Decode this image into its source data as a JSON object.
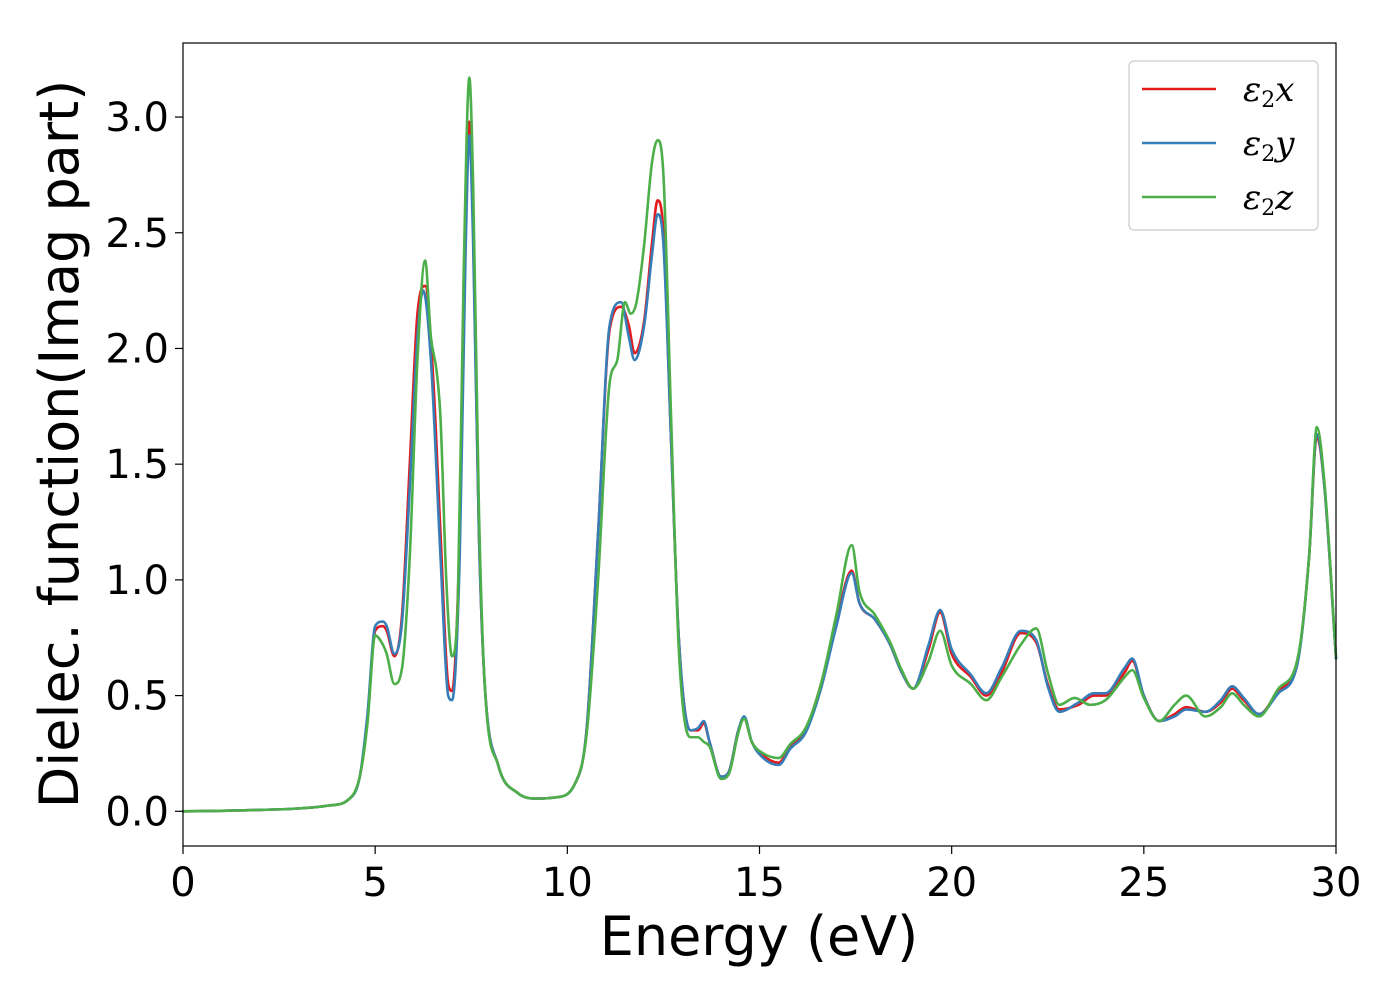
{
  "chart_data": {
    "type": "line",
    "xlabel": "Energy (eV)",
    "ylabel": "Dielec. function(Imag part)",
    "xlim": [
      0,
      30
    ],
    "ylim": [
      -0.15,
      3.32
    ],
    "xticks": [
      0,
      5,
      10,
      15,
      20,
      25,
      30
    ],
    "yticks": [
      0.0,
      0.5,
      1.0,
      1.5,
      2.0,
      2.5,
      3.0
    ],
    "xtick_labels": [
      "0",
      "5",
      "10",
      "15",
      "20",
      "25",
      "30"
    ],
    "ytick_labels": [
      "0.0",
      "0.5",
      "1.0",
      "1.5",
      "2.0",
      "2.5",
      "3.0"
    ],
    "grid": false,
    "legend_position": "top-right",
    "series": [
      {
        "name": "ε2x",
        "symbol": "ε",
        "sub": "2",
        "axis": "x",
        "color": "#e41a1c",
        "points": [
          [
            0,
            0.0
          ],
          [
            1,
            0.002
          ],
          [
            2,
            0.006
          ],
          [
            3,
            0.012
          ],
          [
            3.8,
            0.025
          ],
          [
            4.3,
            0.05
          ],
          [
            4.6,
            0.15
          ],
          [
            4.8,
            0.4
          ],
          [
            5.0,
            0.78
          ],
          [
            5.2,
            0.8
          ],
          [
            5.3,
            0.78
          ],
          [
            5.5,
            0.67
          ],
          [
            5.7,
            0.85
          ],
          [
            5.9,
            1.5
          ],
          [
            6.1,
            2.15
          ],
          [
            6.3,
            2.27
          ],
          [
            6.5,
            1.9
          ],
          [
            6.7,
            1.2
          ],
          [
            6.9,
            0.55
          ],
          [
            7.0,
            0.52
          ],
          [
            7.2,
            1.2
          ],
          [
            7.35,
            2.5
          ],
          [
            7.45,
            2.98
          ],
          [
            7.55,
            2.5
          ],
          [
            7.7,
            1.2
          ],
          [
            7.85,
            0.55
          ],
          [
            8.2,
            0.2
          ],
          [
            8.7,
            0.08
          ],
          [
            9.2,
            0.055
          ],
          [
            9.7,
            0.06
          ],
          [
            10.2,
            0.12
          ],
          [
            10.5,
            0.35
          ],
          [
            10.8,
            1.2
          ],
          [
            11.1,
            2.08
          ],
          [
            11.4,
            2.18
          ],
          [
            11.6,
            2.1
          ],
          [
            11.75,
            1.98
          ],
          [
            12.0,
            2.12
          ],
          [
            12.2,
            2.45
          ],
          [
            12.35,
            2.64
          ],
          [
            12.5,
            2.5
          ],
          [
            12.7,
            1.6
          ],
          [
            12.9,
            0.75
          ],
          [
            13.2,
            0.35
          ],
          [
            13.4,
            0.35
          ],
          [
            13.55,
            0.38
          ],
          [
            13.7,
            0.3
          ],
          [
            14.0,
            0.15
          ],
          [
            14.2,
            0.17
          ],
          [
            14.45,
            0.35
          ],
          [
            14.6,
            0.4
          ],
          [
            14.8,
            0.3
          ],
          [
            15.1,
            0.24
          ],
          [
            15.5,
            0.21
          ],
          [
            15.8,
            0.28
          ],
          [
            16.2,
            0.35
          ],
          [
            16.6,
            0.55
          ],
          [
            17.0,
            0.82
          ],
          [
            17.4,
            1.04
          ],
          [
            17.6,
            0.9
          ],
          [
            18.0,
            0.83
          ],
          [
            18.4,
            0.72
          ],
          [
            18.7,
            0.6
          ],
          [
            19.0,
            0.53
          ],
          [
            19.4,
            0.7
          ],
          [
            19.7,
            0.86
          ],
          [
            20.0,
            0.68
          ],
          [
            20.5,
            0.58
          ],
          [
            20.9,
            0.5
          ],
          [
            21.3,
            0.6
          ],
          [
            21.8,
            0.77
          ],
          [
            22.2,
            0.73
          ],
          [
            22.5,
            0.55
          ],
          [
            22.8,
            0.44
          ],
          [
            23.3,
            0.46
          ],
          [
            23.7,
            0.5
          ],
          [
            24.0,
            0.5
          ],
          [
            24.5,
            0.6
          ],
          [
            24.7,
            0.65
          ],
          [
            25.0,
            0.5
          ],
          [
            25.4,
            0.39
          ],
          [
            25.8,
            0.42
          ],
          [
            26.1,
            0.45
          ],
          [
            26.6,
            0.43
          ],
          [
            27.0,
            0.47
          ],
          [
            27.3,
            0.53
          ],
          [
            27.6,
            0.48
          ],
          [
            28.0,
            0.42
          ],
          [
            28.5,
            0.52
          ],
          [
            29.0,
            0.65
          ],
          [
            29.3,
            1.1
          ],
          [
            29.5,
            1.62
          ],
          [
            29.7,
            1.4
          ],
          [
            30.0,
            0.66
          ]
        ]
      },
      {
        "name": "ε2y",
        "symbol": "ε",
        "sub": "2",
        "axis": "y",
        "color": "#377eb8",
        "points": [
          [
            0,
            0.0
          ],
          [
            1,
            0.002
          ],
          [
            2,
            0.006
          ],
          [
            3,
            0.012
          ],
          [
            3.8,
            0.025
          ],
          [
            4.3,
            0.05
          ],
          [
            4.6,
            0.15
          ],
          [
            4.8,
            0.42
          ],
          [
            5.0,
            0.8
          ],
          [
            5.2,
            0.82
          ],
          [
            5.3,
            0.8
          ],
          [
            5.5,
            0.68
          ],
          [
            5.7,
            0.82
          ],
          [
            5.9,
            1.4
          ],
          [
            6.1,
            2.05
          ],
          [
            6.25,
            2.25
          ],
          [
            6.45,
            1.95
          ],
          [
            6.7,
            1.1
          ],
          [
            6.9,
            0.5
          ],
          [
            7.0,
            0.48
          ],
          [
            7.2,
            1.1
          ],
          [
            7.35,
            2.4
          ],
          [
            7.45,
            2.92
          ],
          [
            7.55,
            2.45
          ],
          [
            7.7,
            1.2
          ],
          [
            7.85,
            0.55
          ],
          [
            8.2,
            0.2
          ],
          [
            8.7,
            0.08
          ],
          [
            9.2,
            0.055
          ],
          [
            9.7,
            0.06
          ],
          [
            10.2,
            0.12
          ],
          [
            10.5,
            0.35
          ],
          [
            10.8,
            1.2
          ],
          [
            11.1,
            2.1
          ],
          [
            11.4,
            2.2
          ],
          [
            11.6,
            2.05
          ],
          [
            11.75,
            1.95
          ],
          [
            12.0,
            2.1
          ],
          [
            12.2,
            2.4
          ],
          [
            12.35,
            2.58
          ],
          [
            12.5,
            2.45
          ],
          [
            12.7,
            1.6
          ],
          [
            12.9,
            0.75
          ],
          [
            13.2,
            0.35
          ],
          [
            13.4,
            0.36
          ],
          [
            13.55,
            0.39
          ],
          [
            13.7,
            0.3
          ],
          [
            14.0,
            0.15
          ],
          [
            14.2,
            0.17
          ],
          [
            14.45,
            0.35
          ],
          [
            14.6,
            0.41
          ],
          [
            14.8,
            0.3
          ],
          [
            15.1,
            0.23
          ],
          [
            15.5,
            0.2
          ],
          [
            15.8,
            0.27
          ],
          [
            16.2,
            0.34
          ],
          [
            16.6,
            0.53
          ],
          [
            17.0,
            0.8
          ],
          [
            17.4,
            1.03
          ],
          [
            17.6,
            0.9
          ],
          [
            18.0,
            0.83
          ],
          [
            18.4,
            0.72
          ],
          [
            18.7,
            0.6
          ],
          [
            19.0,
            0.53
          ],
          [
            19.4,
            0.72
          ],
          [
            19.7,
            0.87
          ],
          [
            20.0,
            0.7
          ],
          [
            20.5,
            0.59
          ],
          [
            20.9,
            0.51
          ],
          [
            21.3,
            0.62
          ],
          [
            21.8,
            0.78
          ],
          [
            22.2,
            0.74
          ],
          [
            22.5,
            0.54
          ],
          [
            22.8,
            0.43
          ],
          [
            23.3,
            0.47
          ],
          [
            23.7,
            0.51
          ],
          [
            24.0,
            0.51
          ],
          [
            24.5,
            0.62
          ],
          [
            24.7,
            0.66
          ],
          [
            25.0,
            0.5
          ],
          [
            25.4,
            0.39
          ],
          [
            25.8,
            0.41
          ],
          [
            26.1,
            0.44
          ],
          [
            26.6,
            0.43
          ],
          [
            27.0,
            0.48
          ],
          [
            27.3,
            0.54
          ],
          [
            27.6,
            0.49
          ],
          [
            28.0,
            0.42
          ],
          [
            28.5,
            0.51
          ],
          [
            29.0,
            0.64
          ],
          [
            29.3,
            1.1
          ],
          [
            29.5,
            1.63
          ],
          [
            29.7,
            1.4
          ],
          [
            30.0,
            0.66
          ]
        ]
      },
      {
        "name": "ε2z",
        "symbol": "ε",
        "sub": "2",
        "axis": "z",
        "color": "#4daf4a",
        "points": [
          [
            0,
            0.0
          ],
          [
            1,
            0.002
          ],
          [
            2,
            0.006
          ],
          [
            3,
            0.012
          ],
          [
            3.8,
            0.025
          ],
          [
            4.3,
            0.05
          ],
          [
            4.6,
            0.15
          ],
          [
            4.8,
            0.38
          ],
          [
            5.0,
            0.76
          ],
          [
            5.2,
            0.72
          ],
          [
            5.3,
            0.68
          ],
          [
            5.5,
            0.55
          ],
          [
            5.7,
            0.62
          ],
          [
            5.9,
            1.1
          ],
          [
            6.1,
            1.95
          ],
          [
            6.3,
            2.38
          ],
          [
            6.45,
            2.05
          ],
          [
            6.6,
            1.9
          ],
          [
            6.7,
            1.7
          ],
          [
            6.85,
            1.0
          ],
          [
            7.0,
            0.67
          ],
          [
            7.15,
            0.9
          ],
          [
            7.3,
            2.3
          ],
          [
            7.45,
            3.17
          ],
          [
            7.55,
            2.7
          ],
          [
            7.7,
            1.3
          ],
          [
            7.85,
            0.55
          ],
          [
            8.2,
            0.2
          ],
          [
            8.7,
            0.08
          ],
          [
            9.2,
            0.055
          ],
          [
            9.7,
            0.06
          ],
          [
            10.2,
            0.12
          ],
          [
            10.5,
            0.33
          ],
          [
            10.8,
            1.0
          ],
          [
            11.1,
            1.85
          ],
          [
            11.3,
            1.95
          ],
          [
            11.5,
            2.2
          ],
          [
            11.65,
            2.15
          ],
          [
            11.8,
            2.2
          ],
          [
            12.0,
            2.45
          ],
          [
            12.2,
            2.8
          ],
          [
            12.35,
            2.9
          ],
          [
            12.5,
            2.75
          ],
          [
            12.7,
            1.7
          ],
          [
            12.9,
            0.7
          ],
          [
            13.2,
            0.32
          ],
          [
            13.4,
            0.32
          ],
          [
            13.55,
            0.3
          ],
          [
            13.7,
            0.28
          ],
          [
            14.0,
            0.14
          ],
          [
            14.2,
            0.16
          ],
          [
            14.45,
            0.34
          ],
          [
            14.6,
            0.4
          ],
          [
            14.8,
            0.3
          ],
          [
            15.1,
            0.25
          ],
          [
            15.5,
            0.23
          ],
          [
            15.8,
            0.29
          ],
          [
            16.2,
            0.36
          ],
          [
            16.6,
            0.55
          ],
          [
            17.0,
            0.85
          ],
          [
            17.4,
            1.15
          ],
          [
            17.6,
            0.95
          ],
          [
            18.0,
            0.85
          ],
          [
            18.4,
            0.73
          ],
          [
            18.7,
            0.61
          ],
          [
            19.0,
            0.53
          ],
          [
            19.4,
            0.65
          ],
          [
            19.7,
            0.78
          ],
          [
            20.0,
            0.63
          ],
          [
            20.5,
            0.55
          ],
          [
            20.9,
            0.48
          ],
          [
            21.3,
            0.58
          ],
          [
            21.8,
            0.72
          ],
          [
            22.2,
            0.79
          ],
          [
            22.5,
            0.6
          ],
          [
            22.8,
            0.46
          ],
          [
            23.2,
            0.49
          ],
          [
            23.6,
            0.46
          ],
          [
            24.0,
            0.48
          ],
          [
            24.5,
            0.58
          ],
          [
            24.7,
            0.61
          ],
          [
            25.0,
            0.49
          ],
          [
            25.4,
            0.39
          ],
          [
            25.8,
            0.46
          ],
          [
            26.1,
            0.5
          ],
          [
            26.6,
            0.41
          ],
          [
            27.0,
            0.45
          ],
          [
            27.3,
            0.51
          ],
          [
            27.6,
            0.46
          ],
          [
            28.0,
            0.41
          ],
          [
            28.5,
            0.53
          ],
          [
            29.0,
            0.66
          ],
          [
            29.3,
            1.1
          ],
          [
            29.5,
            1.66
          ],
          [
            29.7,
            1.42
          ],
          [
            30.0,
            0.67
          ]
        ]
      }
    ]
  }
}
